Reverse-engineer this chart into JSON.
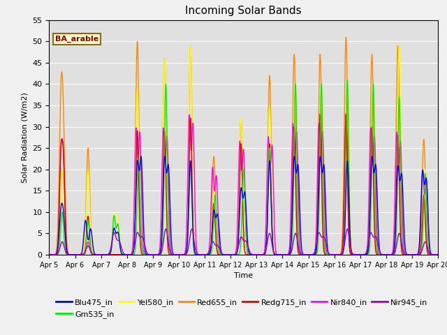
{
  "title": "Incoming Solar Bands",
  "xlabel": "Time",
  "ylabel": "Solar Radiation (W/m2)",
  "annotation": "BA_arable",
  "ylim": [
    0,
    55
  ],
  "series_colors": {
    "Blu475_in": "#0000ff",
    "Gm535_in": "#00ee00",
    "Yel580_in": "#ffff00",
    "Red655_in": "#ff8800",
    "Redg715_in": "#dd0000",
    "Nir840_in": "#ff00ff",
    "Nir945_in": "#9900cc"
  },
  "grid_color": "#ffffff",
  "fig_bg": "#f0f0f0",
  "ax_bg": "#e0e0e0"
}
